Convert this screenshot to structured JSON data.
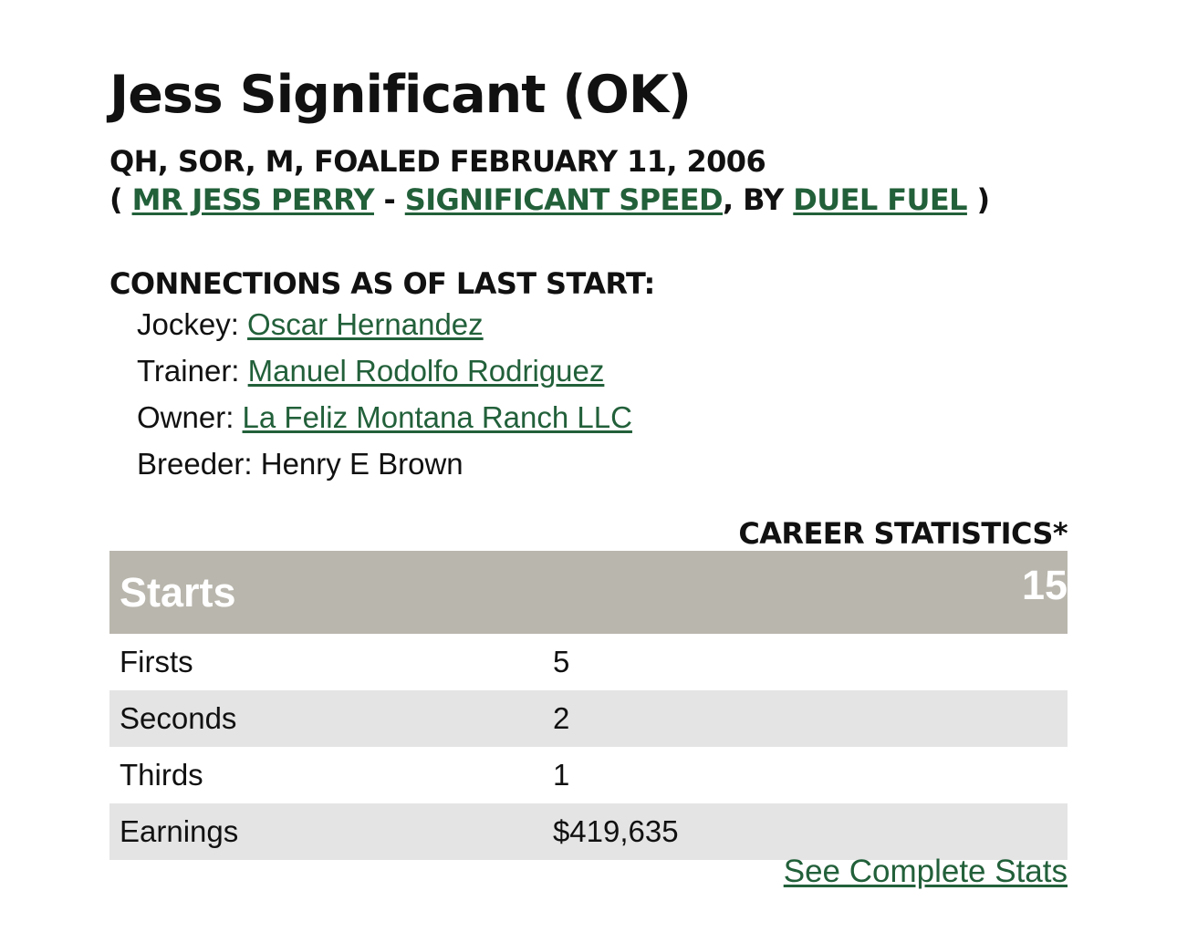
{
  "horse": {
    "name": "Jess Significant (OK)",
    "info_line": "QH, SOR, M, FOALED FEBRUARY 11, 2006",
    "pedigree": {
      "open": "( ",
      "sire": "MR JESS PERRY",
      "sep1": " - ",
      "dam": "SIGNIFICANT SPEED",
      "sep2": ", BY ",
      "damsire": "DUEL FUEL",
      "close": " )"
    }
  },
  "connections": {
    "heading": "CONNECTIONS AS OF LAST START:",
    "jockey_label": "Jockey: ",
    "jockey": "Oscar Hernandez",
    "trainer_label": "Trainer: ",
    "trainer": "Manuel Rodolfo Rodriguez",
    "owner_label": "Owner: ",
    "owner": "La Feliz Montana Ranch LLC",
    "breeder_label": "Breeder: ",
    "breeder": "Henry E Brown"
  },
  "stats": {
    "heading": "CAREER STATISTICS*",
    "header": {
      "label": "Starts",
      "value": "15"
    },
    "rows": [
      {
        "label": "Firsts",
        "value": "5"
      },
      {
        "label": "Seconds",
        "value": "2"
      },
      {
        "label": "Thirds",
        "value": "1"
      },
      {
        "label": "Earnings",
        "value": "$419,635"
      }
    ],
    "complete_link": "See Complete Stats"
  },
  "colors": {
    "link": "#22603a",
    "table_header_bg": "#b9b6ad",
    "table_alt_row_bg": "#e4e4e4"
  }
}
